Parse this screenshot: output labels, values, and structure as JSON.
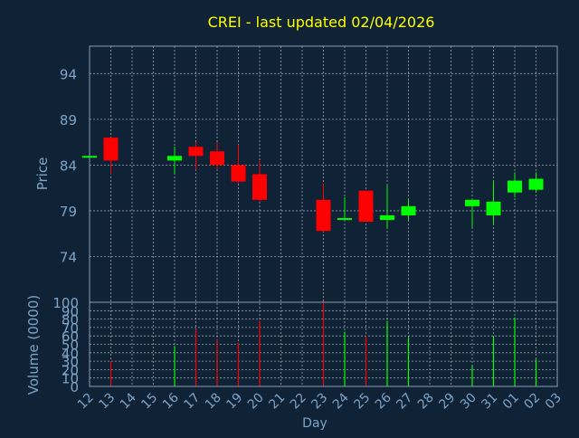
{
  "chart_data": {
    "type": "candlestick",
    "title": "CREI - last updated 02/04/2026",
    "xlabel": "Day",
    "price_panel": {
      "ylabel": "Price",
      "ylim": [
        69,
        97
      ],
      "yticks": [
        74,
        79,
        84,
        89,
        94
      ]
    },
    "volume_panel": {
      "ylabel": "Volume (0000)",
      "ylim": [
        0,
        100
      ],
      "yticks": [
        0,
        10,
        20,
        30,
        40,
        50,
        60,
        70,
        80,
        90,
        100
      ]
    },
    "x_tick_labels": [
      "12",
      "13",
      "14",
      "15",
      "16",
      "17",
      "18",
      "19",
      "20",
      "21",
      "22",
      "23",
      "24",
      "25",
      "26",
      "27",
      "28",
      "29",
      "30",
      "31",
      "01",
      "02",
      "03"
    ],
    "candles": [
      {
        "day": "12",
        "open": 85.0,
        "high": 85.0,
        "low": 85.0,
        "close": 85.0,
        "volume": 0
      },
      {
        "day": "13",
        "open": 87.0,
        "high": 87.0,
        "low": 83.0,
        "close": 84.5,
        "volume": 30
      },
      {
        "day": "16",
        "open": 84.5,
        "high": 86.0,
        "low": 83.0,
        "close": 85.0,
        "volume": 48
      },
      {
        "day": "17",
        "open": 86.0,
        "high": 86.5,
        "low": 83.5,
        "close": 85.0,
        "volume": 68
      },
      {
        "day": "18",
        "open": 85.5,
        "high": 86.5,
        "low": 83.5,
        "close": 84.0,
        "volume": 55
      },
      {
        "day": "19",
        "open": 84.0,
        "high": 86.2,
        "low": 82.0,
        "close": 82.2,
        "volume": 52
      },
      {
        "day": "20",
        "open": 83.0,
        "high": 84.5,
        "low": 80.0,
        "close": 80.2,
        "volume": 78
      },
      {
        "day": "23",
        "open": 80.2,
        "high": 82.0,
        "low": 76.7,
        "close": 76.8,
        "volume": 100
      },
      {
        "day": "24",
        "open": 78.0,
        "high": 80.5,
        "low": 78.0,
        "close": 78.2,
        "volume": 65
      },
      {
        "day": "25",
        "open": 81.2,
        "high": 81.2,
        "low": 77.8,
        "close": 77.8,
        "volume": 60
      },
      {
        "day": "26",
        "open": 78.0,
        "high": 81.8,
        "low": 77.0,
        "close": 78.5,
        "volume": 78
      },
      {
        "day": "27",
        "open": 78.5,
        "high": 80.2,
        "low": 78.0,
        "close": 79.5,
        "volume": 58
      },
      {
        "day": "30",
        "open": 79.5,
        "high": 80.2,
        "low": 77.2,
        "close": 80.2,
        "volume": 25
      },
      {
        "day": "31",
        "open": 78.5,
        "high": 82.3,
        "low": 77.5,
        "close": 80.0,
        "volume": 60
      },
      {
        "day": "01",
        "open": 81.0,
        "high": 83.2,
        "low": 80.5,
        "close": 82.3,
        "volume": 82
      },
      {
        "day": "02",
        "open": 81.3,
        "high": 83.2,
        "low": 81.0,
        "close": 82.5,
        "volume": 32
      }
    ],
    "colors": {
      "background": "#0f2236",
      "grid": "#c9d2dc",
      "frame": "#8aa0b6",
      "axis_text": "#7ea4c8",
      "title": "#ffff00",
      "up": "#00ff00",
      "down": "#ff0000"
    },
    "grid": true
  }
}
